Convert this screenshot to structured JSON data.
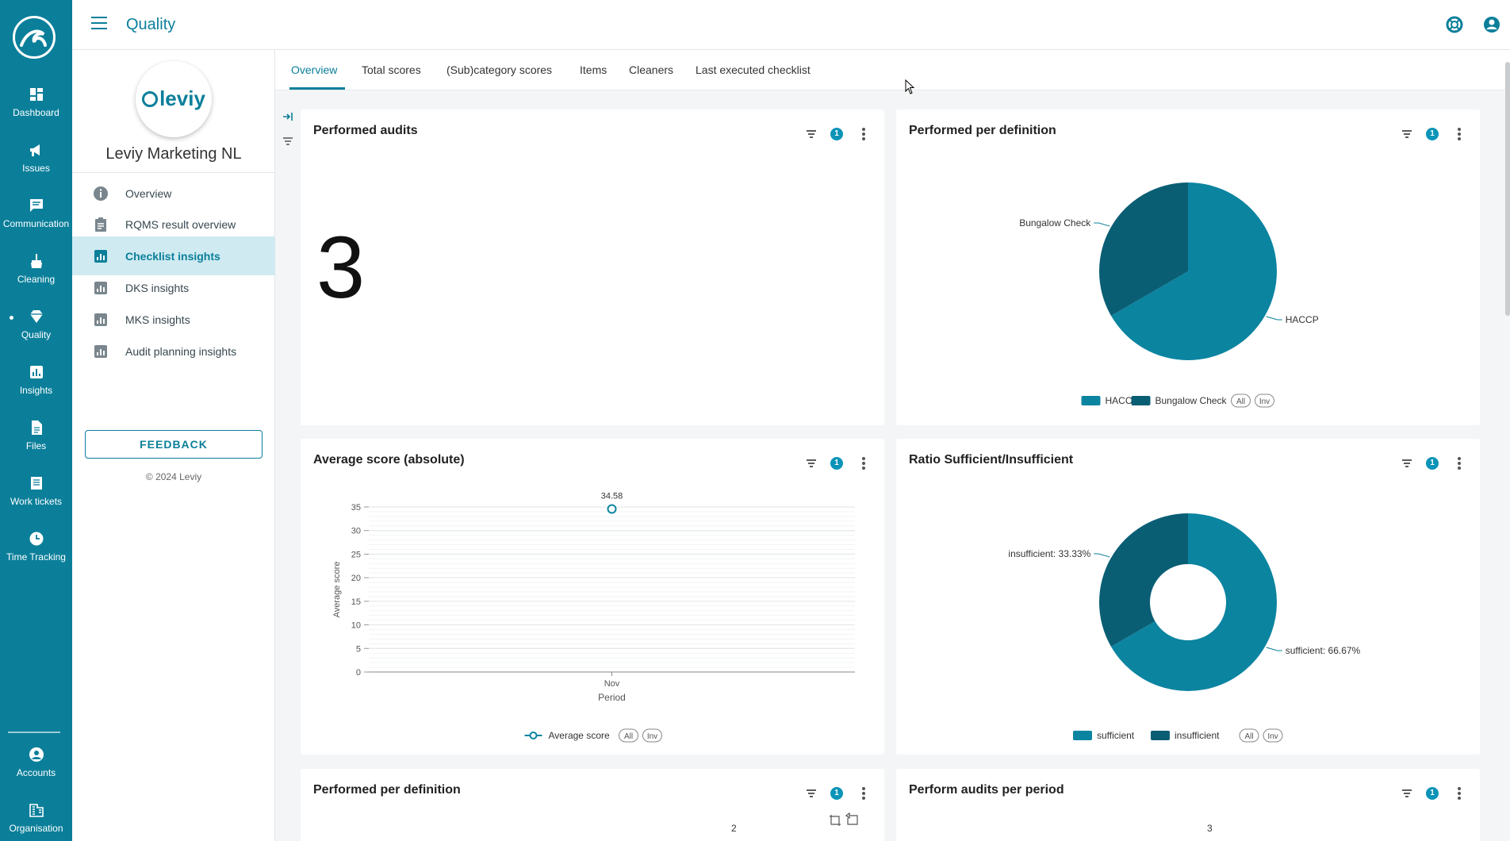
{
  "rail": {
    "logo_icon": "leviy-logo",
    "items": [
      {
        "label": "Dashboard",
        "icon": "dashboard-icon"
      },
      {
        "label": "Issues",
        "icon": "megaphone-icon"
      },
      {
        "label": "Communication",
        "icon": "chat-icon"
      },
      {
        "label": "Cleaning",
        "icon": "broom-icon"
      },
      {
        "label": "Quality",
        "icon": "diamond-icon"
      },
      {
        "label": "Insights",
        "icon": "chart-icon"
      },
      {
        "label": "Files",
        "icon": "file-icon"
      },
      {
        "label": "Work tickets",
        "icon": "ticket-icon"
      },
      {
        "label": "Time Tracking",
        "icon": "clock-icon"
      }
    ],
    "bottom": [
      {
        "label": "Accounts",
        "icon": "account-icon"
      },
      {
        "label": "Organisation",
        "icon": "building-icon"
      }
    ]
  },
  "topbar": {
    "title": "Quality"
  },
  "sidebar": {
    "org_logo_text": "leviy",
    "org_name": "Leviy Marketing NL",
    "items": [
      {
        "label": "Overview",
        "icon": "info-icon"
      },
      {
        "label": "RQMS result overview",
        "icon": "clipboard-icon"
      },
      {
        "label": "Checklist insights",
        "icon": "insights-icon"
      },
      {
        "label": "DKS insights",
        "icon": "insights-icon"
      },
      {
        "label": "MKS insights",
        "icon": "insights-icon"
      },
      {
        "label": "Audit planning insights",
        "icon": "insights-icon"
      }
    ],
    "active_index": 2,
    "feedback_label": "FEEDBACK",
    "copyright": "© 2024 Leviy"
  },
  "tabs": [
    "Overview",
    "Total scores",
    "(Sub)category scores",
    "Items",
    "Cleaners",
    "Last executed checklist"
  ],
  "cards": {
    "performed_audits": {
      "title": "Performed audits",
      "value": "3",
      "filter_count": "1"
    },
    "performed_per_definition": {
      "title": "Performed per definition",
      "filter_count": "1"
    },
    "average_score": {
      "title": "Average score (absolute)",
      "filter_count": "1"
    },
    "ratio": {
      "title": "Ratio Sufficient/Insufficient",
      "filter_count": "1"
    },
    "performed_per_definition_2": {
      "title": "Performed per definition",
      "filter_count": "1",
      "label_value": "2"
    },
    "perform_audits_per_period": {
      "title": "Perform audits per period",
      "filter_count": "1",
      "label_value": "3"
    }
  },
  "legend_buttons": {
    "all": "All",
    "inv": "Inv"
  },
  "colors": {
    "accent": "#0b7f9a",
    "primary_series": "#0b84a0",
    "secondary_series": "#0a5e74"
  },
  "chart_data": [
    {
      "type": "pie",
      "title": "Performed per definition",
      "categories": [
        "HACCP",
        "Bungalow Check"
      ],
      "values": [
        2,
        1
      ],
      "legend": "bottom"
    },
    {
      "type": "line",
      "title": "Average score (absolute)",
      "xlabel": "Period",
      "ylabel": "Average score",
      "categories": [
        "Nov"
      ],
      "series": [
        {
          "name": "Average score",
          "values": [
            34.58
          ]
        }
      ],
      "ylim": [
        0,
        35
      ],
      "yticks": [
        0,
        5,
        10,
        15,
        20,
        25,
        30,
        35
      ],
      "data_labels": [
        "34.58"
      ],
      "legend": "bottom"
    },
    {
      "type": "pie",
      "title": "Ratio Sufficient/Insufficient",
      "categories": [
        "sufficient",
        "insufficient"
      ],
      "values": [
        66.67,
        33.33
      ],
      "data_labels": [
        "sufficient: 66.67%",
        "insufficient: 33.33%"
      ],
      "donut": true,
      "legend": "bottom"
    }
  ]
}
